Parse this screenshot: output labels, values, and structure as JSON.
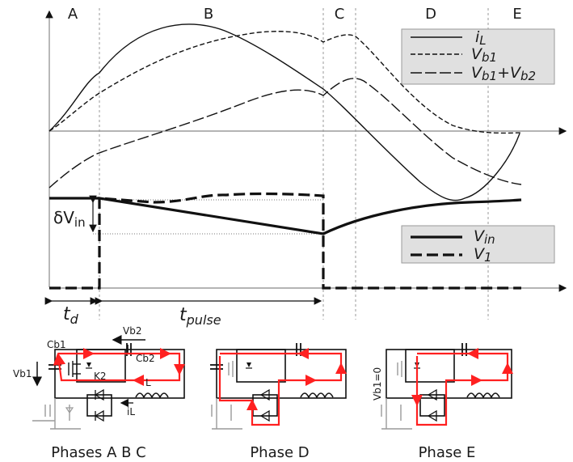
{
  "phases": [
    "A",
    "B",
    "C",
    "D",
    "E"
  ],
  "legend_top": [
    {
      "label": "iL",
      "style": "solid"
    },
    {
      "label": "Vb1",
      "style": "short-dash"
    },
    {
      "label": "Vb1+Vb2",
      "style": "long-dash"
    }
  ],
  "legend_bottom": [
    {
      "label": "Vin",
      "style": "thick-solid"
    },
    {
      "label": "V1",
      "style": "thick-dash"
    }
  ],
  "annotations": {
    "dvin": "δVin",
    "td": "td",
    "tpulse": "tpulse"
  },
  "circuit_labels": {
    "cb1": "Cb1",
    "vb2": "Vb2",
    "cb2": "Cb2",
    "vb1": "Vb1",
    "k2": "K2",
    "l": "L",
    "il": "iL",
    "vb1_zero": "Vb1=0"
  },
  "captions": [
    "Phases A B C",
    "Phase D",
    "Phase E"
  ],
  "colors": {
    "current_path": "#ff2020",
    "legend_bg": "#e0e0e0",
    "gray_components": "#9a9a9a"
  }
}
